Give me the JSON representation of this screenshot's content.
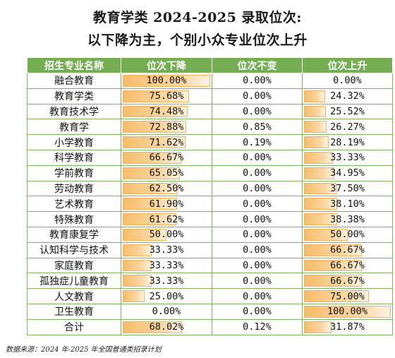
{
  "title_line1": "教育学类 2024-2025 录取位次:",
  "title_line2": "以下降为主，个别小众专业位次上升",
  "source_note": "数据来源：2024 年-2025 年全国普通类招录计划",
  "chart_data": {
    "type": "table",
    "columns": [
      "招生专业名称",
      "位次下降",
      "位次不变",
      "位次上升"
    ],
    "rows": [
      {
        "name": "融合教育",
        "down": "100.00%",
        "same": "0.00%",
        "up": "0.00%",
        "down_v": 100.0,
        "same_v": 0.0,
        "up_v": 0.0
      },
      {
        "name": "教育学类",
        "down": "75.68%",
        "same": "0.00%",
        "up": "24.32%",
        "down_v": 75.68,
        "same_v": 0.0,
        "up_v": 24.32
      },
      {
        "name": "教育技术学",
        "down": "74.48%",
        "same": "0.00%",
        "up": "25.52%",
        "down_v": 74.48,
        "same_v": 0.0,
        "up_v": 25.52
      },
      {
        "name": "教育学",
        "down": "72.88%",
        "same": "0.85%",
        "up": "26.27%",
        "down_v": 72.88,
        "same_v": 0.85,
        "up_v": 26.27
      },
      {
        "name": "小学教育",
        "down": "71.62%",
        "same": "0.19%",
        "up": "28.19%",
        "down_v": 71.62,
        "same_v": 0.19,
        "up_v": 28.19
      },
      {
        "name": "科学教育",
        "down": "66.67%",
        "same": "0.00%",
        "up": "33.33%",
        "down_v": 66.67,
        "same_v": 0.0,
        "up_v": 33.33
      },
      {
        "name": "学前教育",
        "down": "65.05%",
        "same": "0.00%",
        "up": "34.95%",
        "down_v": 65.05,
        "same_v": 0.0,
        "up_v": 34.95
      },
      {
        "name": "劳动教育",
        "down": "62.50%",
        "same": "0.00%",
        "up": "37.50%",
        "down_v": 62.5,
        "same_v": 0.0,
        "up_v": 37.5
      },
      {
        "name": "艺术教育",
        "down": "61.90%",
        "same": "0.00%",
        "up": "38.10%",
        "down_v": 61.9,
        "same_v": 0.0,
        "up_v": 38.1
      },
      {
        "name": "特殊教育",
        "down": "61.62%",
        "same": "0.00%",
        "up": "38.38%",
        "down_v": 61.62,
        "same_v": 0.0,
        "up_v": 38.38
      },
      {
        "name": "教育康复学",
        "down": "50.00%",
        "same": "0.00%",
        "up": "50.00%",
        "down_v": 50.0,
        "same_v": 0.0,
        "up_v": 50.0
      },
      {
        "name": "认知科学与技术",
        "down": "33.33%",
        "same": "0.00%",
        "up": "66.67%",
        "down_v": 33.33,
        "same_v": 0.0,
        "up_v": 66.67
      },
      {
        "name": "家庭教育",
        "down": "33.33%",
        "same": "0.00%",
        "up": "66.67%",
        "down_v": 33.33,
        "same_v": 0.0,
        "up_v": 66.67
      },
      {
        "name": "孤独症儿童教育",
        "down": "33.33%",
        "same": "0.00%",
        "up": "66.67%",
        "down_v": 33.33,
        "same_v": 0.0,
        "up_v": 66.67
      },
      {
        "name": "人文教育",
        "down": "25.00%",
        "same": "0.00%",
        "up": "75.00%",
        "down_v": 25.0,
        "same_v": 0.0,
        "up_v": 75.0
      },
      {
        "name": "卫生教育",
        "down": "0.00%",
        "same": "0.00%",
        "up": "100.00%",
        "down_v": 0.0,
        "same_v": 0.0,
        "up_v": 100.0
      },
      {
        "name": "合计",
        "down": "68.02%",
        "same": "0.12%",
        "up": "31.87%",
        "down_v": 68.02,
        "same_v": 0.12,
        "up_v": 31.87
      }
    ],
    "header_color": "#74ad52",
    "bar_color": "#f6bd6a",
    "value_max": 100
  }
}
